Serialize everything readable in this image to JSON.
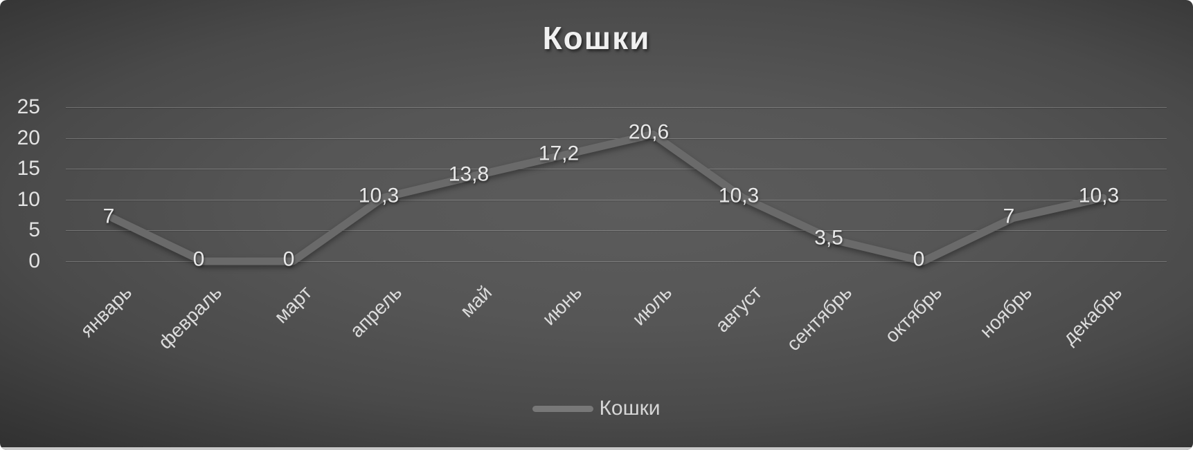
{
  "chart": {
    "title": "Кошки",
    "legend_label": "Кошки"
  },
  "colors": {
    "background_center": "#5c5c5c",
    "background_edge": "#252525",
    "series_line": "#6a6a6a",
    "gridline": "rgba(255,255,255,0.22)",
    "text": "#e3e3e3",
    "bottom_edge_strip": "#c9c9c9"
  },
  "chart_data": {
    "type": "line",
    "title": "Кошки",
    "categories": [
      "январь",
      "февраль",
      "март",
      "апрель",
      "май",
      "июнь",
      "июль",
      "август",
      "сентябрь",
      "октябрь",
      "ноябрь",
      "декабрь"
    ],
    "series": [
      {
        "name": "Кошки",
        "values": [
          7,
          0,
          0,
          10.3,
          13.8,
          17.2,
          20.6,
          10.3,
          3.5,
          0,
          7,
          10.3
        ]
      }
    ],
    "data_labels": [
      "7",
      "0",
      "0",
      "10,3",
      "13,8",
      "17,2",
      "20,6",
      "10,3",
      "3,5",
      "0",
      "7",
      "10,3"
    ],
    "y_ticks": [
      0,
      5,
      10,
      15,
      20,
      25
    ],
    "ylim": [
      0,
      25
    ],
    "xlabel": "",
    "ylabel": "",
    "grid": true,
    "legend_position": "bottom",
    "x_label_rotation": -45,
    "decimal_separator": ","
  }
}
